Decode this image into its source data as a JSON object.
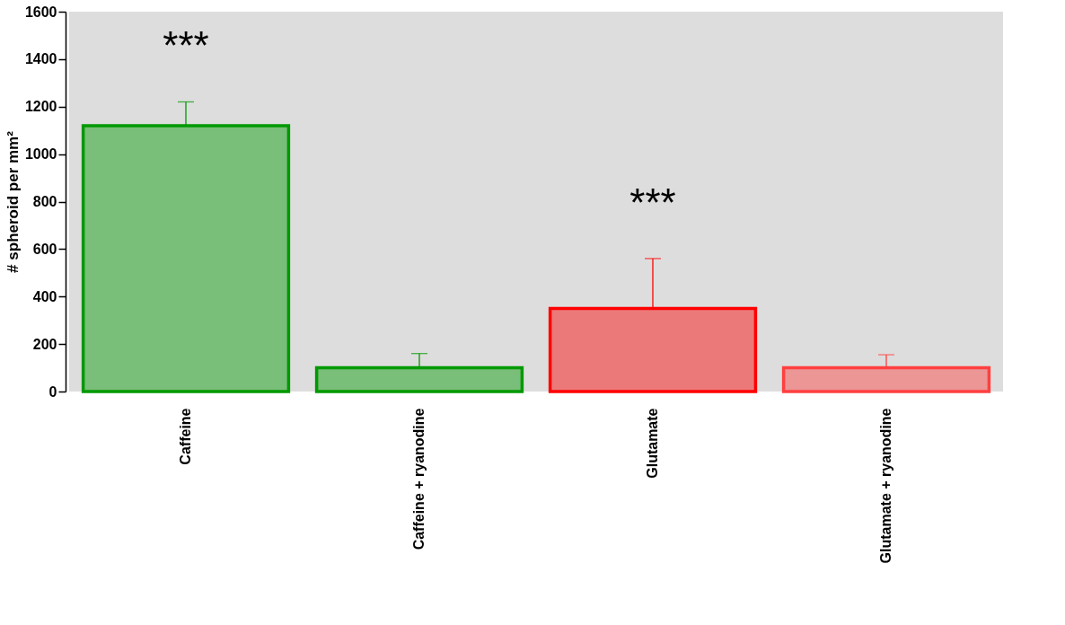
{
  "chart_data": {
    "type": "bar",
    "ylabel": "# spheroid per mm²",
    "categories": [
      "Caffeine",
      "Caffeine + ryanodine",
      "Glutamate",
      "Glutamate + ryanodine"
    ],
    "values": [
      1120,
      100,
      350,
      100
    ],
    "errors": [
      [
        1120,
        1220
      ],
      [
        100,
        160
      ],
      [
        350,
        560
      ],
      [
        100,
        155
      ]
    ],
    "colors": [
      "#009900",
      "#009900",
      "#ff0000",
      "#ff4040"
    ],
    "ylim": [
      0,
      1600
    ],
    "yticks": [
      0,
      200,
      400,
      600,
      800,
      1000,
      1200,
      1400,
      1600
    ],
    "grid": false,
    "legend": false,
    "annotations": [
      "***",
      "***"
    ]
  }
}
